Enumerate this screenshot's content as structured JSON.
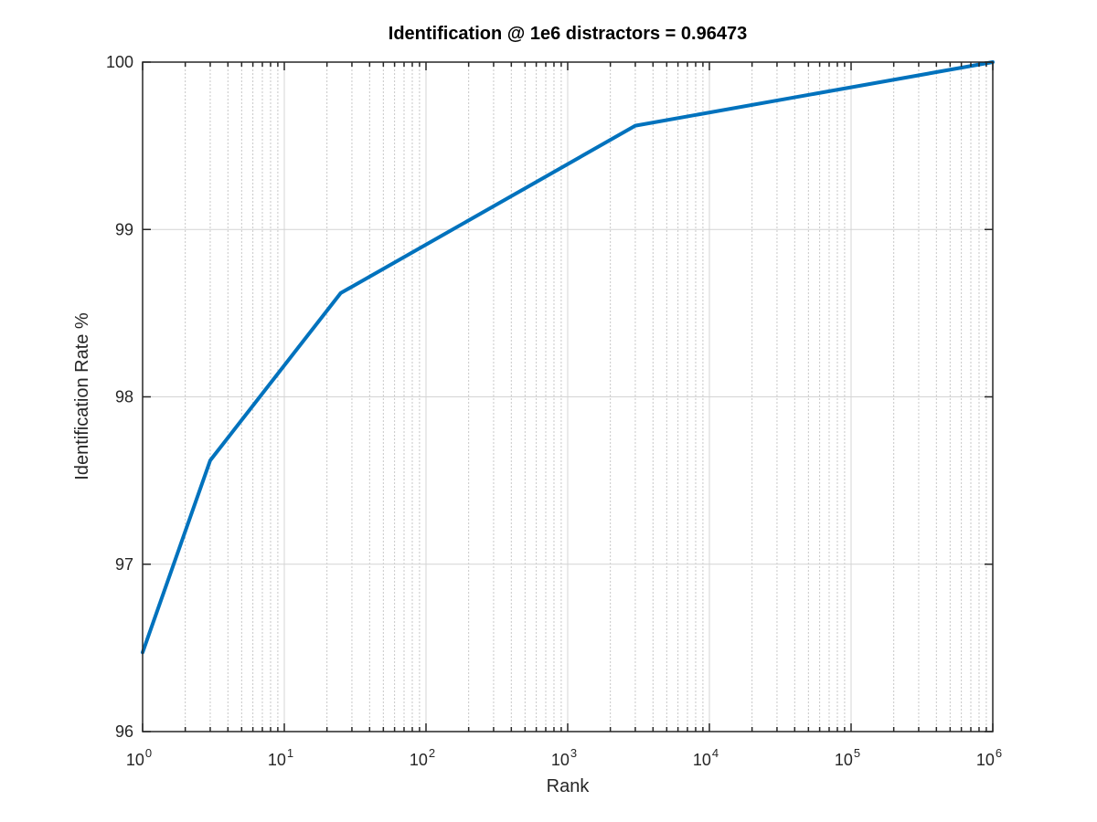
{
  "chart_data": {
    "type": "line",
    "title": "Identification @ 1e6 distractors = 0.96473",
    "xlabel": "Rank",
    "ylabel": "Identification Rate %",
    "xscale": "log",
    "xlim": [
      1,
      1000000
    ],
    "ylim": [
      96,
      100
    ],
    "xticks": [
      {
        "base": "10",
        "exp": "0"
      },
      {
        "base": "10",
        "exp": "1"
      },
      {
        "base": "10",
        "exp": "2"
      },
      {
        "base": "10",
        "exp": "3"
      },
      {
        "base": "10",
        "exp": "4"
      },
      {
        "base": "10",
        "exp": "5"
      },
      {
        "base": "10",
        "exp": "6"
      }
    ],
    "yticks": [
      "96",
      "97",
      "98",
      "99",
      "100"
    ],
    "grid": true,
    "series": [
      {
        "color": "#0072bd",
        "x": [
          1,
          3,
          25,
          3000,
          1000000
        ],
        "y": [
          96.473,
          97.62,
          98.62,
          99.62,
          100
        ]
      }
    ]
  }
}
